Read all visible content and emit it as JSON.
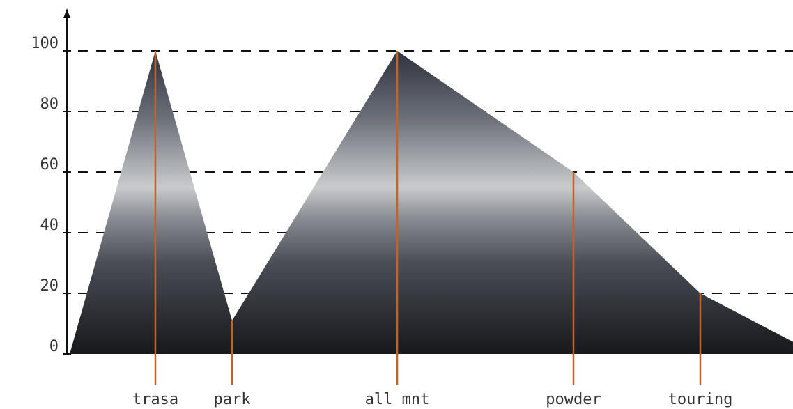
{
  "chart_data": {
    "type": "area",
    "categories": [
      null,
      "trasa",
      "park",
      "all mnt",
      "powder",
      "touring",
      null
    ],
    "values": [
      0,
      100,
      11,
      100,
      60,
      20,
      4
    ],
    "marker_color": "#c8621e",
    "ylim": [
      0,
      100
    ],
    "yticks": [
      0,
      20,
      40,
      60,
      80,
      100
    ],
    "grid": true
  }
}
